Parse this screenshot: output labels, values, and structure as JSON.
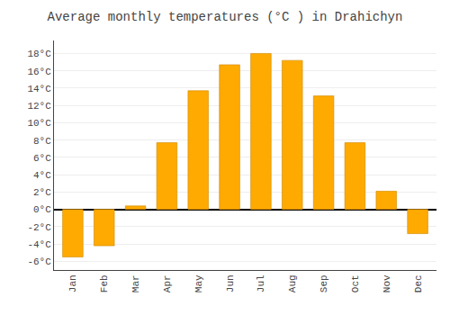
{
  "chart_data": {
    "type": "bar",
    "title": "Average monthly temperatures (°C ) in Drahichyn",
    "categories": [
      "Jan",
      "Feb",
      "Mar",
      "Apr",
      "May",
      "Jun",
      "Jul",
      "Aug",
      "Sep",
      "Oct",
      "Nov",
      "Dec"
    ],
    "values": [
      -5.5,
      -4.2,
      0.4,
      7.7,
      13.7,
      16.7,
      18.0,
      17.2,
      13.1,
      7.7,
      2.1,
      -2.8
    ],
    "color": "#FFAA00",
    "ylim": [
      -7,
      19.5
    ],
    "yticks": [
      {
        "value": -6,
        "label": "-6°C"
      },
      {
        "value": -4,
        "label": "-4°C"
      },
      {
        "value": -2,
        "label": "-2°C"
      },
      {
        "value": 0,
        "label": "0°C"
      },
      {
        "value": 2,
        "label": "2°C"
      },
      {
        "value": 4,
        "label": "4°C"
      },
      {
        "value": 6,
        "label": "6°C"
      },
      {
        "value": 8,
        "label": "8°C"
      },
      {
        "value": 10,
        "label": "10°C"
      },
      {
        "value": 12,
        "label": "12°C"
      },
      {
        "value": 14,
        "label": "14°C"
      },
      {
        "value": 16,
        "label": "16°C"
      },
      {
        "value": 18,
        "label": "18°C"
      }
    ],
    "grid": true
  }
}
